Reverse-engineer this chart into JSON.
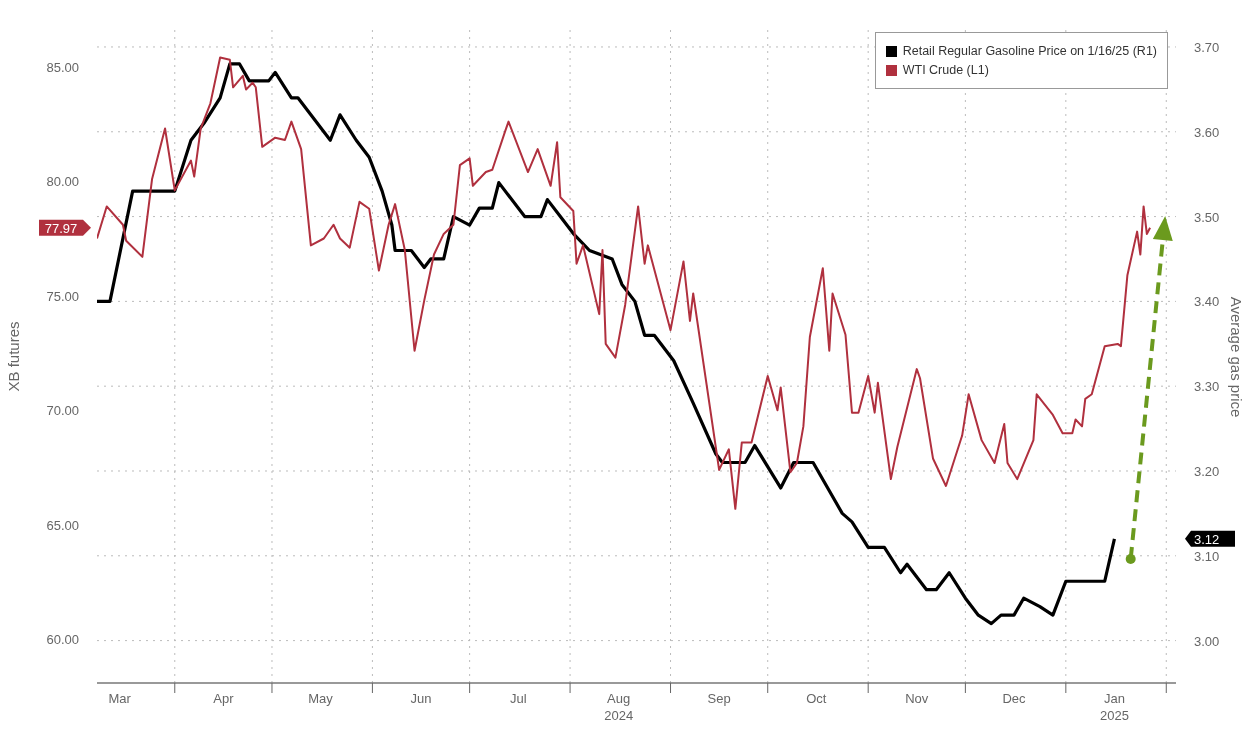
{
  "chart_data": {
    "type": "line",
    "ylabel": "XB futures",
    "y2label": "Average gas price",
    "legend": "top right",
    "grid": true,
    "xlim": [
      "2024-03-08",
      "2025-02-04"
    ],
    "xticks": [
      {
        "value": "2024-03-15",
        "label": "Mar"
      },
      {
        "value": "2024-04-01",
        "label": null
      },
      {
        "value": "2024-04-16",
        "label": "Apr"
      },
      {
        "value": "2024-05-01",
        "label": null
      },
      {
        "value": "2024-05-16",
        "label": "May"
      },
      {
        "value": "2024-06-01",
        "label": null
      },
      {
        "value": "2024-06-16",
        "label": "Jun"
      },
      {
        "value": "2024-07-01",
        "label": null
      },
      {
        "value": "2024-07-16",
        "label": "Jul"
      },
      {
        "value": "2024-08-01",
        "label": null
      },
      {
        "value": "2024-08-16",
        "label": "Aug\n2024"
      },
      {
        "value": "2024-09-01",
        "label": null
      },
      {
        "value": "2024-09-16",
        "label": "Sep"
      },
      {
        "value": "2024-10-01",
        "label": null
      },
      {
        "value": "2024-10-16",
        "label": "Oct"
      },
      {
        "value": "2024-11-01",
        "label": null
      },
      {
        "value": "2024-11-16",
        "label": "Nov"
      },
      {
        "value": "2024-12-01",
        "label": null
      },
      {
        "value": "2024-12-16",
        "label": "Dec"
      },
      {
        "value": "2025-01-01",
        "label": null
      },
      {
        "value": "2025-01-16",
        "label": "Jan\n2025"
      },
      {
        "value": "2025-02-01",
        "label": null
      }
    ],
    "ylim": [
      58.1,
      86.6
    ],
    "yticks": [
      {
        "value": 60,
        "label": "60.00"
      },
      {
        "value": 65,
        "label": "65.00"
      },
      {
        "value": 70,
        "label": "70.00"
      },
      {
        "value": 75,
        "label": "75.00"
      },
      {
        "value": 77.97,
        "label": "77.97"
      },
      {
        "value": 80,
        "label": "80.00"
      },
      {
        "value": 85,
        "label": "85.00"
      }
    ],
    "y2lim": [
      2.95,
      3.72
    ],
    "y2ticks": [
      {
        "value": 3.0,
        "label": "3.00"
      },
      {
        "value": 3.1,
        "label": "3.10"
      },
      {
        "value": 3.12,
        "label": "3.12"
      },
      {
        "value": 3.2,
        "label": "3.20"
      },
      {
        "value": 3.3,
        "label": "3.30"
      },
      {
        "value": 3.4,
        "label": "3.40"
      },
      {
        "value": 3.5,
        "label": "3.50"
      },
      {
        "value": 3.6,
        "label": "3.60"
      },
      {
        "value": 3.7,
        "label": "3.70"
      }
    ],
    "series": [
      {
        "name": "Retail Regular Gasoline Price on 1/16/25 (R1)",
        "color": "#000000",
        "axis": "y2",
        "x": [
          "2024-03-08",
          "2024-03-12",
          "2024-03-19",
          "2024-03-23",
          "2024-04-01",
          "2024-04-06",
          "2024-04-10",
          "2024-04-15",
          "2024-04-18",
          "2024-04-21",
          "2024-04-24",
          "2024-04-30",
          "2024-05-02",
          "2024-05-07",
          "2024-05-09",
          "2024-05-13",
          "2024-05-19",
          "2024-05-22",
          "2024-05-27",
          "2024-05-31",
          "2024-06-04",
          "2024-06-07",
          "2024-06-08",
          "2024-06-13",
          "2024-06-17",
          "2024-06-19",
          "2024-06-23",
          "2024-06-26",
          "2024-07-01",
          "2024-07-04",
          "2024-07-08",
          "2024-07-10",
          "2024-07-18",
          "2024-07-23",
          "2024-07-25",
          "2024-07-29",
          "2024-08-02",
          "2024-08-07",
          "2024-08-14",
          "2024-08-17",
          "2024-08-21",
          "2024-08-24",
          "2024-08-27",
          "2024-09-02",
          "2024-09-08",
          "2024-09-15",
          "2024-09-17",
          "2024-09-24",
          "2024-09-27",
          "2024-10-05",
          "2024-10-09",
          "2024-10-15",
          "2024-10-24",
          "2024-10-27",
          "2024-11-01",
          "2024-11-06",
          "2024-11-11",
          "2024-11-13",
          "2024-11-19",
          "2024-11-22",
          "2024-11-26",
          "2024-12-01",
          "2024-12-05",
          "2024-12-09",
          "2024-12-12",
          "2024-12-16",
          "2024-12-19",
          "2024-12-24",
          "2024-12-28",
          "2025-01-01",
          "2025-01-05",
          "2025-01-08",
          "2025-01-13",
          "2025-01-16"
        ],
        "values": [
          3.4,
          3.4,
          3.53,
          3.53,
          3.53,
          3.59,
          3.61,
          3.64,
          3.68,
          3.68,
          3.66,
          3.66,
          3.67,
          3.64,
          3.64,
          3.62,
          3.59,
          3.62,
          3.59,
          3.57,
          3.53,
          3.49,
          3.46,
          3.46,
          3.44,
          3.45,
          3.45,
          3.5,
          3.49,
          3.51,
          3.51,
          3.54,
          3.5,
          3.5,
          3.52,
          3.5,
          3.48,
          3.46,
          3.45,
          3.42,
          3.4,
          3.36,
          3.36,
          3.33,
          3.28,
          3.22,
          3.21,
          3.21,
          3.23,
          3.18,
          3.21,
          3.21,
          3.15,
          3.14,
          3.11,
          3.11,
          3.08,
          3.09,
          3.06,
          3.06,
          3.08,
          3.05,
          3.03,
          3.02,
          3.03,
          3.03,
          3.05,
          3.04,
          3.03,
          3.07,
          3.07,
          3.07,
          3.07,
          3.12
        ]
      },
      {
        "name": "WTI Crude (L1)",
        "color": "#b0303e",
        "x": [
          "2024-03-08",
          "2024-03-11",
          "2024-03-16",
          "2024-03-17",
          "2024-03-22",
          "2024-03-25",
          "2024-03-29",
          "2024-04-01",
          "2024-04-06",
          "2024-04-07",
          "2024-04-09",
          "2024-04-12",
          "2024-04-15",
          "2024-04-18",
          "2024-04-19",
          "2024-04-22",
          "2024-04-23",
          "2024-04-25",
          "2024-04-26",
          "2024-04-28",
          "2024-05-02",
          "2024-05-05",
          "2024-05-07",
          "2024-05-10",
          "2024-05-13",
          "2024-05-17",
          "2024-05-20",
          "2024-05-22",
          "2024-05-25",
          "2024-05-28",
          "2024-05-31",
          "2024-06-03",
          "2024-06-06",
          "2024-06-08",
          "2024-06-11",
          "2024-06-14",
          "2024-06-17",
          "2024-06-20",
          "2024-06-23",
          "2024-06-26",
          "2024-06-28",
          "2024-07-01",
          "2024-07-02",
          "2024-07-06",
          "2024-07-08",
          "2024-07-12",
          "2024-07-13",
          "2024-07-19",
          "2024-07-22",
          "2024-07-26",
          "2024-07-28",
          "2024-07-29",
          "2024-08-02",
          "2024-08-03",
          "2024-08-05",
          "2024-08-10",
          "2024-08-11",
          "2024-08-12",
          "2024-08-15",
          "2024-08-18",
          "2024-08-22",
          "2024-08-24",
          "2024-08-25",
          "2024-09-01",
          "2024-09-05",
          "2024-09-07",
          "2024-09-08",
          "2024-09-16",
          "2024-09-19",
          "2024-09-21",
          "2024-09-23",
          "2024-09-26",
          "2024-10-01",
          "2024-10-04",
          "2024-10-05",
          "2024-10-08",
          "2024-10-10",
          "2024-10-12",
          "2024-10-14",
          "2024-10-18",
          "2024-10-20",
          "2024-10-21",
          "2024-10-25",
          "2024-10-27",
          "2024-10-29",
          "2024-11-01",
          "2024-11-03",
          "2024-11-04",
          "2024-11-08",
          "2024-11-10",
          "2024-11-16",
          "2024-11-17",
          "2024-11-21",
          "2024-11-25",
          "2024-11-30",
          "2024-12-02",
          "2024-12-06",
          "2024-12-10",
          "2024-12-13",
          "2024-12-14",
          "2024-12-17",
          "2024-12-22",
          "2024-12-23",
          "2024-12-28",
          "2024-12-31",
          "2025-01-03",
          "2025-01-04",
          "2025-01-06",
          "2025-01-07",
          "2025-01-09",
          "2025-01-13",
          "2025-01-17",
          "2025-01-18",
          "2025-01-20",
          "2025-01-23",
          "2025-01-24",
          "2025-01-25",
          "2025-01-26",
          "2025-01-27"
        ],
        "values": [
          77.5,
          78.9,
          78.1,
          77.4,
          76.7,
          80.1,
          82.3,
          79.6,
          80.9,
          80.2,
          82.3,
          83.4,
          85.4,
          85.3,
          84.1,
          84.6,
          84.0,
          84.3,
          84.1,
          81.5,
          81.9,
          81.8,
          82.6,
          81.4,
          77.2,
          77.5,
          78.1,
          77.5,
          77.1,
          79.1,
          78.8,
          76.1,
          78.1,
          79.0,
          77.0,
          72.6,
          74.8,
          76.8,
          77.7,
          78.1,
          80.7,
          81.0,
          79.8,
          80.4,
          80.5,
          82.2,
          82.6,
          80.4,
          81.4,
          79.8,
          81.7,
          79.3,
          78.7,
          76.4,
          77.2,
          74.2,
          77.0,
          72.9,
          72.3,
          74.6,
          78.9,
          76.4,
          77.2,
          73.5,
          76.5,
          73.9,
          75.1,
          67.4,
          68.3,
          65.7,
          68.6,
          68.6,
          71.5,
          70.0,
          71.0,
          67.3,
          67.7,
          69.3,
          73.2,
          76.2,
          72.6,
          75.1,
          73.3,
          69.9,
          69.9,
          71.5,
          69.9,
          71.2,
          67.0,
          68.4,
          71.8,
          71.4,
          67.9,
          66.7,
          68.9,
          70.7,
          68.7,
          67.7,
          69.4,
          67.7,
          67.0,
          68.7,
          70.7,
          69.8,
          69.0,
          69.0,
          69.6,
          69.3,
          70.5,
          70.7,
          72.8,
          72.9,
          72.8,
          75.9,
          77.8,
          76.8,
          78.9,
          77.7,
          77.97
        ]
      }
    ]
  }
}
